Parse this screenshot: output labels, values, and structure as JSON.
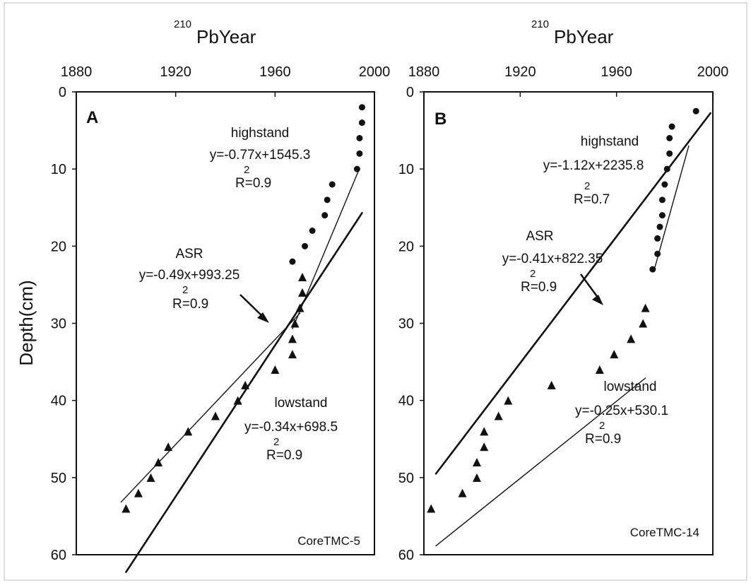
{
  "chart_data": [
    {
      "type": "scatter",
      "panel": "A",
      "core_label": "CoreTMC-5",
      "xlabel_sup": "210",
      "xlabel": "PbYear",
      "ylabel": "Depth(cm)",
      "xlim": [
        1880,
        2000
      ],
      "ylim": [
        0,
        60
      ],
      "y_inverted": true,
      "x_axis_position": "top",
      "xticks": [
        "1880",
        "1920",
        "1960",
        "2000"
      ],
      "yticks": [
        "0",
        "10",
        "20",
        "30",
        "40",
        "50",
        "60"
      ],
      "series": [
        {
          "name": "highstand",
          "marker": "circle",
          "points": [
            [
              1995,
              2
            ],
            [
              1995,
              4
            ],
            [
              1994,
              6
            ],
            [
              1994,
              8
            ],
            [
              1993,
              10
            ],
            [
              1983,
              12
            ],
            [
              1981,
              14
            ],
            [
              1980,
              16
            ],
            [
              1975,
              18
            ],
            [
              1972,
              20
            ],
            [
              1967,
              22
            ]
          ]
        },
        {
          "name": "lowstand",
          "marker": "triangle",
          "points": [
            [
              1900,
              54
            ],
            [
              1905,
              52
            ],
            [
              1910,
              50
            ],
            [
              1913,
              48
            ],
            [
              1917,
              46
            ],
            [
              1925,
              44
            ],
            [
              1936,
              42
            ],
            [
              1945,
              40
            ],
            [
              1948,
              38
            ],
            [
              1960,
              36
            ],
            [
              1967,
              34
            ],
            [
              1967,
              32
            ],
            [
              1968,
              30
            ],
            [
              1970,
              28
            ],
            [
              1971,
              26
            ],
            [
              1971,
              24
            ]
          ]
        }
      ],
      "fits": [
        {
          "name": "highstand",
          "equation": "y=-0.77x+1545.3",
          "r2_sup": "2",
          "r2_text": "R=0.9",
          "x_range": [
            1967,
            1994
          ]
        },
        {
          "name": "ASR",
          "equation": "y=-0.49x+993.25",
          "r2_sup": "2",
          "r2_text": "R=0.9",
          "x_range": [
            1900,
            1995
          ]
        },
        {
          "name": "lowstand",
          "equation": "y=-0.34x+698.5",
          "r2_sup": "2",
          "r2_text": "R=0.9",
          "x_range": [
            1898,
            1970
          ]
        }
      ]
    },
    {
      "type": "scatter",
      "panel": "B",
      "core_label": "CoreTMC-14",
      "xlabel_sup": "210",
      "xlabel": "PbYear",
      "xlim": [
        1880,
        2000
      ],
      "ylim": [
        0,
        60
      ],
      "y_inverted": true,
      "x_axis_position": "top",
      "xticks": [
        "1880",
        "1920",
        "1960",
        "2000"
      ],
      "yticks": [
        "0",
        "10",
        "20",
        "30",
        "40",
        "50",
        "60"
      ],
      "series": [
        {
          "name": "highstand",
          "marker": "circle",
          "points": [
            [
              1993,
              2.5
            ],
            [
              1983,
              4.5
            ],
            [
              1982,
              6
            ],
            [
              1982,
              8
            ],
            [
              1981,
              10
            ],
            [
              1980,
              12
            ],
            [
              1979,
              14
            ],
            [
              1979,
              16
            ],
            [
              1978,
              17.5
            ],
            [
              1977,
              19
            ],
            [
              1977,
              21
            ],
            [
              1975,
              23
            ]
          ]
        },
        {
          "name": "lowstand",
          "marker": "triangle",
          "points": [
            [
              1883,
              54
            ],
            [
              1896,
              52
            ],
            [
              1902,
              50
            ],
            [
              1902,
              48
            ],
            [
              1905,
              44
            ],
            [
              1905,
              46
            ],
            [
              1911,
              42
            ],
            [
              1915,
              40
            ],
            [
              1933,
              38
            ],
            [
              1953,
              36
            ],
            [
              1959,
              34
            ],
            [
              1966,
              32
            ],
            [
              1971,
              30
            ],
            [
              1972,
              28
            ]
          ]
        }
      ],
      "fits": [
        {
          "name": "highstand",
          "equation": "y=-1.12x+2235.8",
          "r2_sup": "2",
          "r2_text": "R=0.7",
          "x_range": [
            1976,
            1990
          ]
        },
        {
          "name": "ASR",
          "equation": "y=-0.41x+822.35",
          "r2_sup": "2",
          "r2_text": "R=0.9",
          "x_range": [
            1885,
            1999
          ]
        },
        {
          "name": "lowstand",
          "equation": "y=-0.25x+530.1",
          "r2_sup": "2",
          "r2_text": "R=0.9",
          "x_range": [
            1885,
            1972
          ]
        }
      ]
    }
  ]
}
